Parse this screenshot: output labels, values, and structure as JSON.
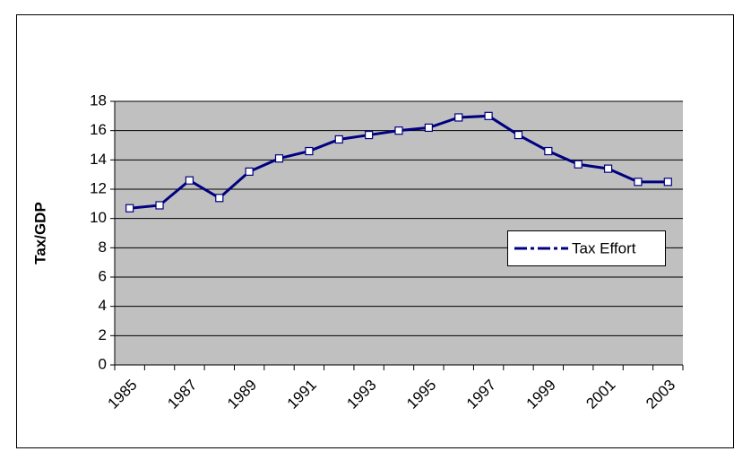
{
  "chart_data": {
    "type": "line",
    "y_label": "Tax/GDP",
    "categories": [
      "1985",
      null,
      "1987",
      null,
      "1989",
      null,
      "1991",
      null,
      "1993",
      null,
      "1995",
      null,
      "1997",
      null,
      "1999",
      null,
      "2001",
      null,
      "2003"
    ],
    "series": [
      {
        "name": "Tax Effort",
        "color": "#000080",
        "values": [
          10.7,
          10.9,
          12.6,
          11.4,
          13.2,
          14.1,
          14.6,
          15.4,
          15.7,
          16.0,
          16.2,
          16.9,
          17.0,
          15.7,
          14.6,
          13.7,
          13.4,
          12.5,
          12.5
        ]
      }
    ],
    "ylim": [
      0,
      18
    ],
    "yticks": [
      0,
      2,
      4,
      6,
      8,
      10,
      12,
      14,
      16,
      18
    ],
    "grid": true,
    "legend": "right"
  }
}
